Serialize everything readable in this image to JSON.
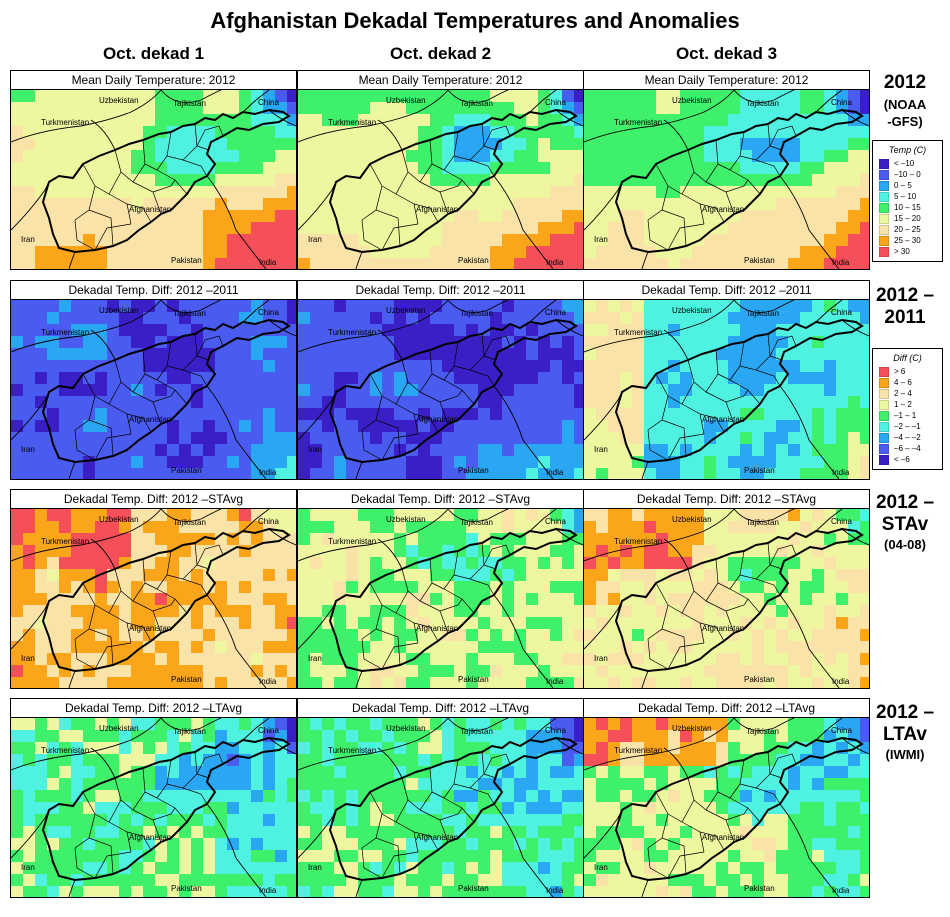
{
  "title": "Afghanistan Dekadal Temperatures and Anomalies",
  "columns": [
    "Oct. dekad 1",
    "Oct. dekad 2",
    "Oct. dekad 3"
  ],
  "rows": [
    {
      "label": "2012",
      "sub": "(NOAA -GFS)",
      "panel_title": "Mean Daily Temperature: 2012",
      "palette": "temp"
    },
    {
      "label": "2012 –2011",
      "sub": "",
      "panel_title": "Dekadal Temp. Diff: 2012 –2011",
      "palette": "diff"
    },
    {
      "label": "2012 –STAv",
      "sub": "(04-08)",
      "panel_title": "Dekadal Temp. Diff: 2012 –STAvg",
      "palette": "diff"
    },
    {
      "label": "2012 –LTAv",
      "sub": "(IWMI)",
      "panel_title": "Dekadal Temp. Diff: 2012 –LTAvg",
      "palette": "diff"
    }
  ],
  "map_labels": [
    "Uzbekistan",
    "Tajikistan",
    "China",
    "Turkmenistan",
    "Afghanistan",
    "Iran",
    "Pakistan",
    "India"
  ],
  "legends": {
    "temp": {
      "title": "Temp (C)",
      "items": [
        {
          "label": "< –10",
          "color": "#3a1fc7"
        },
        {
          "label": "–10 – 0",
          "color": "#4a5bf0"
        },
        {
          "label": "0 – 5",
          "color": "#2aa7f2"
        },
        {
          "label": "5 – 10",
          "color": "#4ff2e0"
        },
        {
          "label": "10 – 15",
          "color": "#3ef06a"
        },
        {
          "label": "15 – 20",
          "color": "#eef6a0"
        },
        {
          "label": "20 – 25",
          "color": "#fae3a8"
        },
        {
          "label": "25 – 30",
          "color": "#fba51a"
        },
        {
          "label": "> 30",
          "color": "#f5505a"
        }
      ]
    },
    "diff": {
      "title": "Diff (C)",
      "items": [
        {
          "label": "> 6",
          "color": "#f5505a"
        },
        {
          "label": "4 – 6",
          "color": "#fba51a"
        },
        {
          "label": "2 – 4",
          "color": "#fae3a8"
        },
        {
          "label": "1 – 2",
          "color": "#eef6a0"
        },
        {
          "label": "–1 – 1",
          "color": "#3ef06a"
        },
        {
          "label": "–2 – –1",
          "color": "#4ff2e0"
        },
        {
          "label": "–4 – –2",
          "color": "#2aa7f2"
        },
        {
          "label": "–6 – –4",
          "color": "#4a5bf0"
        },
        {
          "label": "< –6",
          "color": "#3a1fc7"
        }
      ]
    }
  }
}
